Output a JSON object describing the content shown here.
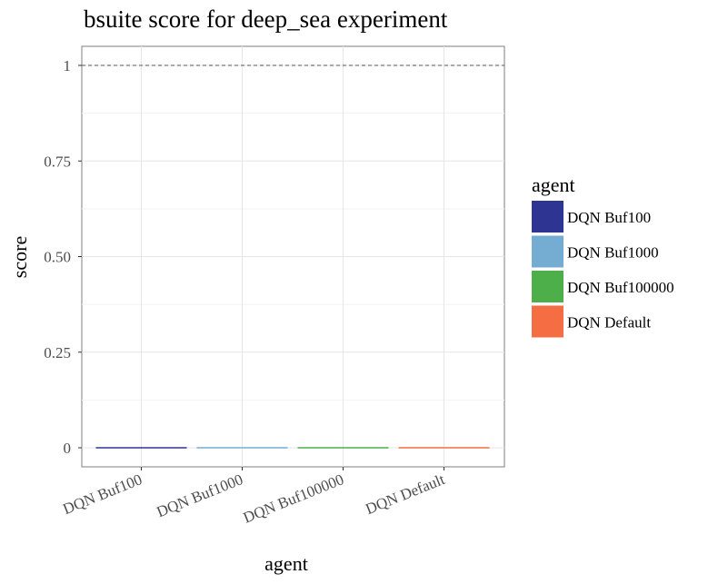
{
  "chart_data": {
    "type": "bar",
    "title": "bsuite score for deep_sea experiment",
    "xlabel": "agent",
    "ylabel": "score",
    "categories": [
      "DQN Buf100",
      "DQN Buf1000",
      "DQN Buf100000",
      "DQN Default"
    ],
    "values": [
      0,
      0,
      0,
      0
    ],
    "colors": [
      "#2e3492",
      "#75add2",
      "#4daf4a",
      "#f46d43"
    ],
    "ylim": [
      0,
      1
    ],
    "yticks": [
      0,
      0.25,
      0.5,
      0.75,
      1
    ],
    "ytick_labels": [
      "0",
      "0.25",
      "0.50",
      "0.75",
      "1"
    ],
    "reference_line": 1,
    "grid": true,
    "legend": {
      "title": "agent",
      "placement": "right",
      "entries": [
        "DQN Buf100",
        "DQN Buf1000",
        "DQN Buf100000",
        "DQN Default"
      ]
    }
  }
}
